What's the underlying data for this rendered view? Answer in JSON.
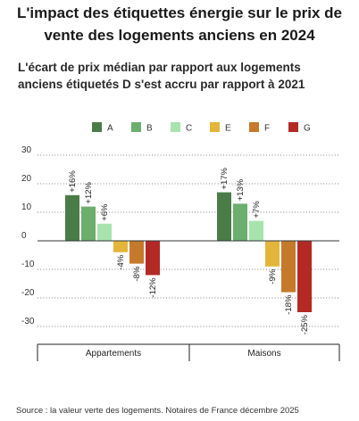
{
  "title": "L'impact des étiquettes énergie sur le prix de\nvente des logements anciens en 2024",
  "subtitle": "L'écart de prix médian par rapport aux logements\nanciens étiquetés D s'est accru par rapport à 2021",
  "source": "Source : la valeur verte des logements. Notaires de France décembre 2025",
  "chart_data": {
    "type": "bar",
    "categories": [
      "Appartements",
      "Maisons"
    ],
    "series": [
      {
        "name": "A",
        "color": "#4a7c47",
        "values": [
          16,
          17
        ],
        "labels": [
          "+16%",
          "+17%"
        ]
      },
      {
        "name": "B",
        "color": "#6bae6d",
        "values": [
          12,
          13
        ],
        "labels": [
          "+12%",
          "+13%"
        ]
      },
      {
        "name": "C",
        "color": "#a8e3ad",
        "values": [
          6,
          7
        ],
        "labels": [
          "+6%",
          "+7%"
        ]
      },
      {
        "name": "E",
        "color": "#e3b53a",
        "values": [
          -4,
          -9
        ],
        "labels": [
          "-4%",
          "-9%"
        ]
      },
      {
        "name": "F",
        "color": "#c47a2a",
        "values": [
          -8,
          -18
        ],
        "labels": [
          "-8%",
          "-18%"
        ]
      },
      {
        "name": "G",
        "color": "#b32a25",
        "values": [
          -12,
          -25
        ],
        "labels": [
          "-12%",
          "-25%"
        ]
      }
    ],
    "yticks": [
      30,
      20,
      10,
      0,
      -10,
      -20,
      -30
    ],
    "ylim": [
      -35,
      30
    ],
    "grid": true,
    "legend_position": "top-center"
  }
}
